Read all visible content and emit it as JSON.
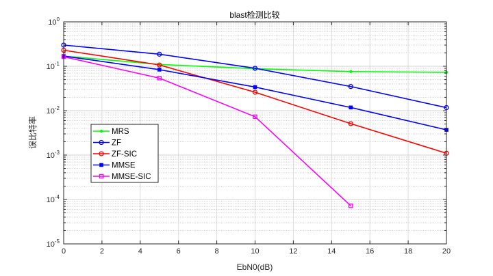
{
  "chart_data": {
    "type": "line",
    "title": "blast检测比较",
    "xlabel": "EbN0(dB)",
    "ylabel": "误比特率",
    "xlim": [
      0,
      20
    ],
    "ylim": [
      1e-05,
      1
    ],
    "yscale": "log",
    "grid": true,
    "minor_grid": true,
    "legend_placement": "lower-left",
    "x_ticks": [
      0,
      2,
      4,
      6,
      8,
      10,
      12,
      14,
      16,
      18,
      20
    ],
    "x_tick_labels": [
      "0",
      "2",
      "4",
      "6",
      "8",
      "10",
      "12",
      "14",
      "16",
      "18",
      "20"
    ],
    "y_ticks": [
      1e-05,
      0.0001,
      0.001,
      0.01,
      0.1,
      1
    ],
    "y_tick_labels": [
      {
        "base": "10",
        "exp": "-5"
      },
      {
        "base": "10",
        "exp": "-4"
      },
      {
        "base": "10",
        "exp": "-3"
      },
      {
        "base": "10",
        "exp": "-2"
      },
      {
        "base": "10",
        "exp": "-1"
      },
      {
        "base": "10",
        "exp": "0"
      }
    ],
    "x": [
      0,
      5,
      10,
      15,
      20
    ],
    "series": [
      {
        "name": "MRS",
        "color": "#00ff00",
        "marker": "dot",
        "x": [
          0,
          5,
          10,
          15,
          20
        ],
        "values": [
          0.17,
          0.11,
          0.088,
          0.076,
          0.073
        ]
      },
      {
        "name": "ZF",
        "color": "#0000ff",
        "marker": "circle",
        "x": [
          0,
          5,
          10,
          15,
          20
        ],
        "values": [
          0.3,
          0.187,
          0.09,
          0.035,
          0.0117
        ]
      },
      {
        "name": "ZF-SIC",
        "color": "#ff0000",
        "marker": "circle",
        "x": [
          0,
          5,
          10,
          15,
          20
        ],
        "values": [
          0.23,
          0.107,
          0.026,
          0.0051,
          0.0011
        ]
      },
      {
        "name": "MMSE",
        "color": "#0000ff",
        "marker": "square-filled",
        "x": [
          0,
          5,
          10,
          15,
          20
        ],
        "values": [
          0.17,
          0.084,
          0.034,
          0.0118,
          0.0037
        ]
      },
      {
        "name": "MMSE-SIC",
        "color": "#ff00ff",
        "marker": "square",
        "x": [
          0,
          5,
          10,
          15
        ],
        "values": [
          0.164,
          0.054,
          0.0073,
          7.2e-05
        ]
      }
    ]
  }
}
